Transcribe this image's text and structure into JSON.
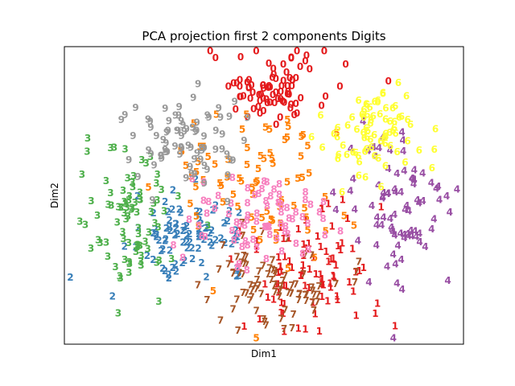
{
  "chart_data": {
    "type": "scatter",
    "title": "PCA projection first 2 components Digits",
    "xlabel": "Dim1",
    "ylabel": "Dim2",
    "xlim": [
      0,
      1
    ],
    "ylim": [
      0,
      1
    ],
    "ticks_visible": false,
    "grid": false,
    "legend": "none",
    "seed": 7,
    "series": [
      {
        "label": "0",
        "color": "#e41a1c",
        "count": 85,
        "cx": 0.52,
        "cy": 0.86,
        "sx": 0.075,
        "sy": 0.06
      },
      {
        "label": "1",
        "color": "#e41a1c",
        "count": 90,
        "cx": 0.62,
        "cy": 0.24,
        "sx": 0.09,
        "sy": 0.12
      },
      {
        "label": "2",
        "color": "#377eb8",
        "count": 90,
        "cx": 0.31,
        "cy": 0.37,
        "sx": 0.07,
        "sy": 0.06
      },
      {
        "label": "3",
        "color": "#4daf4a",
        "count": 85,
        "cx": 0.17,
        "cy": 0.42,
        "sx": 0.06,
        "sy": 0.12
      },
      {
        "label": "4",
        "color": "#984ea3",
        "count": 85,
        "cx": 0.84,
        "cy": 0.45,
        "sx": 0.07,
        "sy": 0.13
      },
      {
        "label": "5",
        "color": "#ff7f00",
        "count": 80,
        "cx": 0.48,
        "cy": 0.52,
        "sx": 0.11,
        "sy": 0.16
      },
      {
        "label": "6",
        "color": "#ffff33",
        "count": 80,
        "cx": 0.78,
        "cy": 0.72,
        "sx": 0.065,
        "sy": 0.08
      },
      {
        "label": "7",
        "color": "#a65628",
        "count": 85,
        "cx": 0.52,
        "cy": 0.21,
        "sx": 0.08,
        "sy": 0.07
      },
      {
        "label": "8",
        "color": "#f781bf",
        "count": 80,
        "cx": 0.48,
        "cy": 0.42,
        "sx": 0.085,
        "sy": 0.08
      },
      {
        "label": "9",
        "color": "#999999",
        "count": 80,
        "cx": 0.3,
        "cy": 0.68,
        "sx": 0.07,
        "sy": 0.075
      }
    ]
  }
}
